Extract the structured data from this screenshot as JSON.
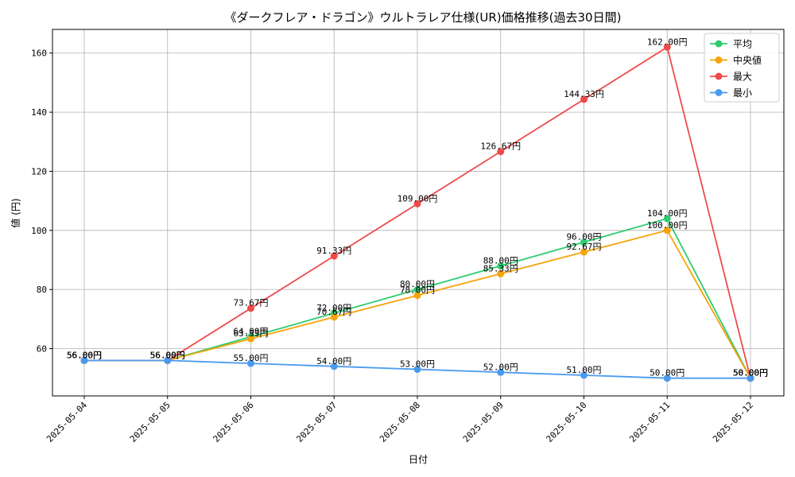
{
  "chart_data": {
    "type": "line",
    "title": "《ダークフレア・ドラゴン》ウルトラレア仕様(UR)価格推移(過去30日間)",
    "xlabel": "日付",
    "ylabel": "値 (円)",
    "x": [
      "2025-05-04",
      "2025-05-05",
      "2025-05-06",
      "2025-05-07",
      "2025-05-08",
      "2025-05-09",
      "2025-05-10",
      "2025-05-11",
      "2025-05-12"
    ],
    "ylim": [
      44,
      168
    ],
    "yticks": [
      60,
      80,
      100,
      120,
      140,
      160
    ],
    "grid": true,
    "legend_position": "top-right",
    "value_suffix": "円",
    "series": [
      {
        "name": "平均",
        "color": "#2ecc71",
        "values": [
          56.0,
          56.0,
          64.0,
          72.0,
          80.0,
          88.0,
          96.0,
          104.0,
          50.0
        ]
      },
      {
        "name": "中央値",
        "color": "#f5a40c",
        "values": [
          56.0,
          56.0,
          63.33,
          70.67,
          78.0,
          85.33,
          92.67,
          100.0,
          50.0
        ]
      },
      {
        "name": "最大",
        "color": "#ef4b4b",
        "values": [
          56.0,
          56.0,
          73.67,
          91.33,
          109.0,
          126.67,
          144.33,
          162.0,
          50.0
        ]
      },
      {
        "name": "最小",
        "color": "#4a9af0",
        "values": [
          56.0,
          56.0,
          55.0,
          54.0,
          53.0,
          52.0,
          51.0,
          50.0,
          50.0
        ]
      }
    ]
  }
}
